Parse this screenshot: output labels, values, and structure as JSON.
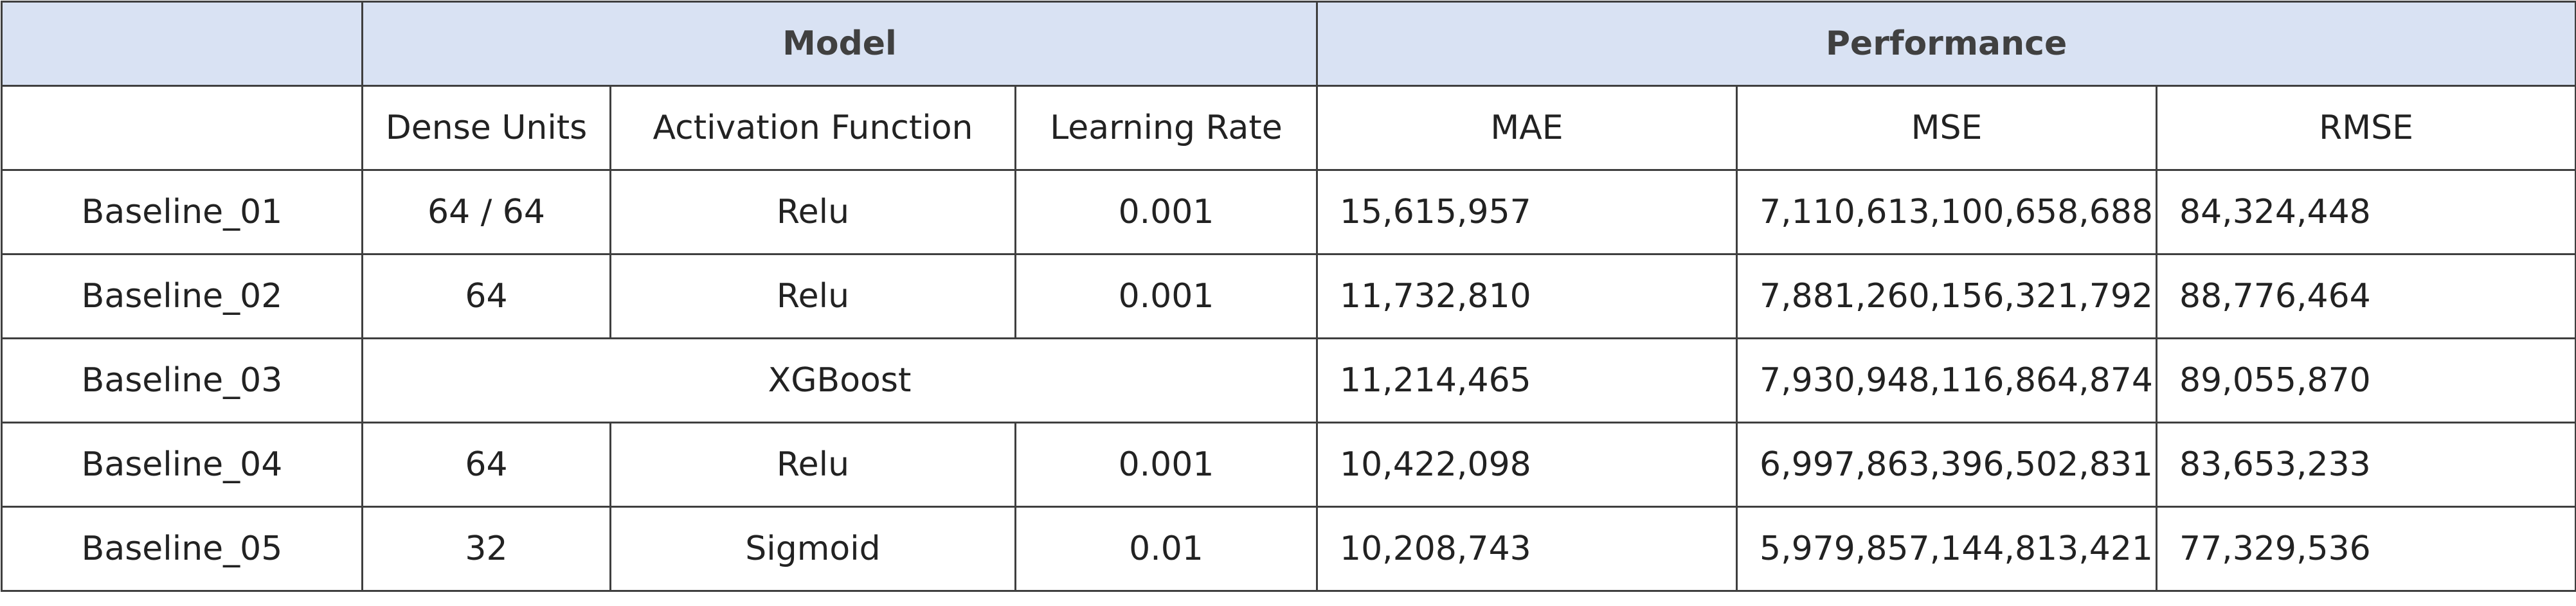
{
  "table": {
    "group_headers": {
      "corner": "",
      "model": "Model",
      "performance": "Performance"
    },
    "column_headers": {
      "name": "",
      "dense_units": "Dense Units",
      "activation": "Activation Function",
      "learning_rate": "Learning Rate",
      "mae": "MAE",
      "mse": "MSE",
      "rmse": "RMSE"
    },
    "rows": [
      {
        "name": "Baseline_01",
        "dense_units": "64 / 64",
        "activation": "Relu",
        "learning_rate": "0.001",
        "mae": "15,615,957",
        "mse": "7,110,613,100,658,688",
        "rmse": "84,324,448"
      },
      {
        "name": "Baseline_02",
        "dense_units": "64",
        "activation": "Relu",
        "learning_rate": "0.001",
        "mae": "11,732,810",
        "mse": "7,881,260,156,321,792",
        "rmse": "88,776,464"
      },
      {
        "name": "Baseline_03",
        "model_merged": "XGBoost",
        "mae": "11,214,465",
        "mse": "7,930,948,116,864,874",
        "rmse": "89,055,870"
      },
      {
        "name": "Baseline_04",
        "dense_units": "64",
        "activation": "Relu",
        "learning_rate": "0.001",
        "mae": "10,422,098",
        "mse": "6,997,863,396,502,831",
        "rmse": "83,653,233"
      },
      {
        "name": "Baseline_05",
        "dense_units": "32",
        "activation": "Sigmoid",
        "learning_rate": "0.01",
        "mae": "10,208,743",
        "mse": "5,979,857,144,813,421",
        "rmse": "77,329,536"
      }
    ]
  }
}
